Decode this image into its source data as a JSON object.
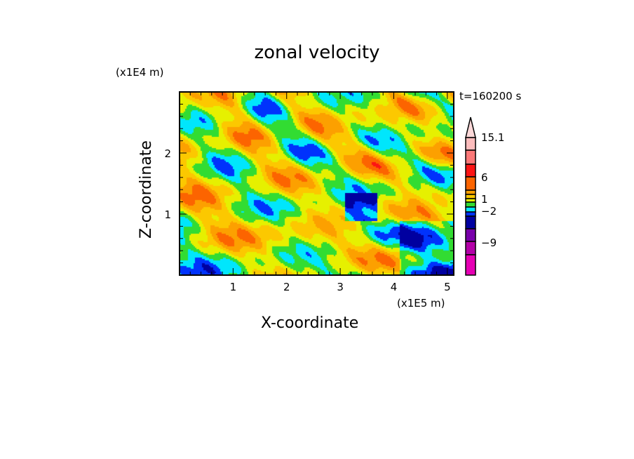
{
  "chart_data": {
    "type": "heatmap",
    "title": "zonal velocity",
    "xlabel": "X-coordinate",
    "ylabel": "Z-coordinate",
    "x_scale_label": "(x1E5 m)",
    "y_scale_label": "(x1E4 m)",
    "time_label": "t=160200 s",
    "xlim": [
      0,
      5.12
    ],
    "ylim": [
      0,
      3.0
    ],
    "xticks": [
      "1",
      "2",
      "3",
      "4",
      "5"
    ],
    "xtick_values": [
      1,
      2,
      3,
      4,
      5
    ],
    "yticks": [
      "1",
      "2"
    ],
    "ytick_values": [
      1,
      2
    ],
    "colorbar": {
      "colors": [
        "#fcd8d8",
        "#fcbcbc",
        "#fc7878",
        "#fc1414",
        "#fc6400",
        "#fca000",
        "#fcc800",
        "#e6f000",
        "#32dc32",
        "#00e6fc",
        "#0032fc",
        "#0000a0",
        "#7800aa",
        "#b400a8",
        "#e600b4"
      ],
      "labels": [
        "15.1",
        "6",
        "1",
        "-2",
        "-9"
      ]
    }
  }
}
